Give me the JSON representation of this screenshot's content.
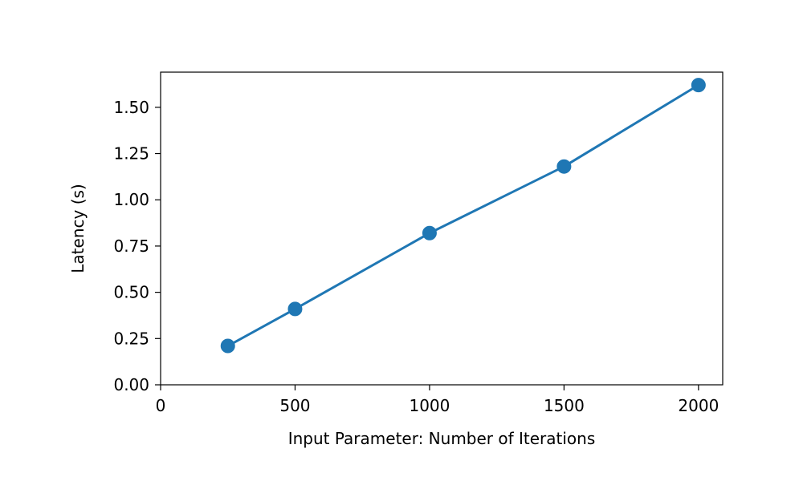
{
  "chart_data": {
    "type": "line",
    "title": "",
    "xlabel": "Input Parameter: Number of Iterations",
    "ylabel": "Latency (s)",
    "xlim": [
      0,
      2090
    ],
    "ylim": [
      0,
      1.69
    ],
    "x_ticks": [
      0,
      500,
      1000,
      1500,
      2000
    ],
    "x_tick_labels": [
      "0",
      "500",
      "1000",
      "1500",
      "2000"
    ],
    "y_ticks": [
      0,
      0.25,
      0.5,
      0.75,
      1.0,
      1.25,
      1.5
    ],
    "y_tick_labels": [
      "0.00",
      "0.25",
      "0.50",
      "0.75",
      "1.00",
      "1.25",
      "1.50"
    ],
    "grid": false,
    "legend": false,
    "series": [
      {
        "color": "#1f77b4",
        "marker": "circle",
        "x": [
          250,
          500,
          1000,
          1500,
          2000
        ],
        "y": [
          0.21,
          0.41,
          0.82,
          1.18,
          1.62
        ]
      }
    ]
  }
}
